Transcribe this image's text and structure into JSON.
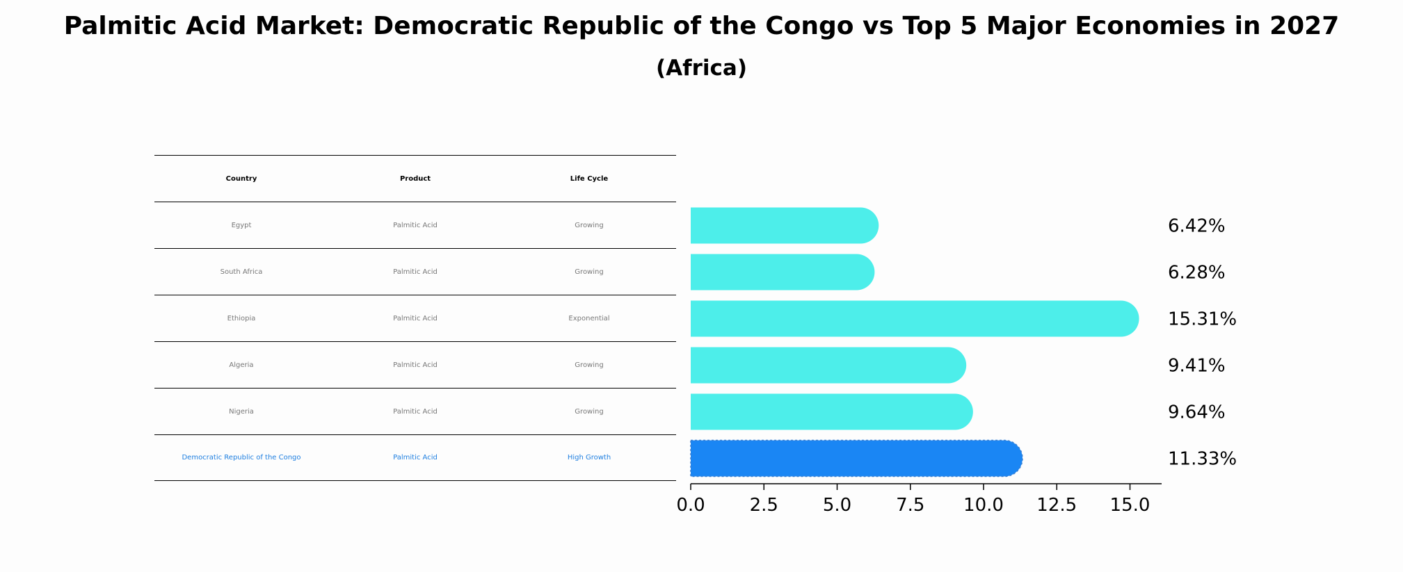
{
  "title": "Palmitic Acid Market: Democratic Republic of the Congo vs Top 5 Major Economies in 2027",
  "subtitle": "(Africa)",
  "table": {
    "headers": [
      "Country",
      "Product",
      "Life Cycle"
    ],
    "rows": [
      [
        "Egypt",
        "Palmitic Acid",
        "Growing"
      ],
      [
        "South Africa",
        "Palmitic Acid",
        "Growing"
      ],
      [
        "Ethiopia",
        "Palmitic Acid",
        "Exponential"
      ],
      [
        "Algeria",
        "Palmitic Acid",
        "Growing"
      ],
      [
        "Nigeria",
        "Palmitic Acid",
        "Growing"
      ],
      [
        "Democratic Republic of the Congo",
        "Palmitic Acid",
        "High Growth"
      ]
    ],
    "highlight_row": 5
  },
  "colors": {
    "bar": "#4deeea",
    "highlight_bar": "#1a86f4",
    "highlight_text": "#1f7fe0",
    "muted_text": "#777777"
  },
  "chart_data": {
    "type": "bar",
    "orientation": "horizontal",
    "categories": [
      "Egypt",
      "South Africa",
      "Ethiopia",
      "Algeria",
      "Nigeria",
      "Democratic Republic of the Congo"
    ],
    "values": [
      6.42,
      6.28,
      15.31,
      9.41,
      9.64,
      11.33
    ],
    "value_labels": [
      "6.42%",
      "6.28%",
      "15.31%",
      "9.41%",
      "9.64%",
      "11.33%"
    ],
    "highlight_index": 5,
    "xlim": [
      0,
      16.1
    ],
    "xticks": [
      0.0,
      2.5,
      5.0,
      7.5,
      10.0,
      12.5,
      15.0
    ],
    "xtick_labels": [
      "0.0",
      "2.5",
      "5.0",
      "7.5",
      "10.0",
      "12.5",
      "15.0"
    ],
    "xlabel": "",
    "ylabel": "",
    "grid": false
  }
}
